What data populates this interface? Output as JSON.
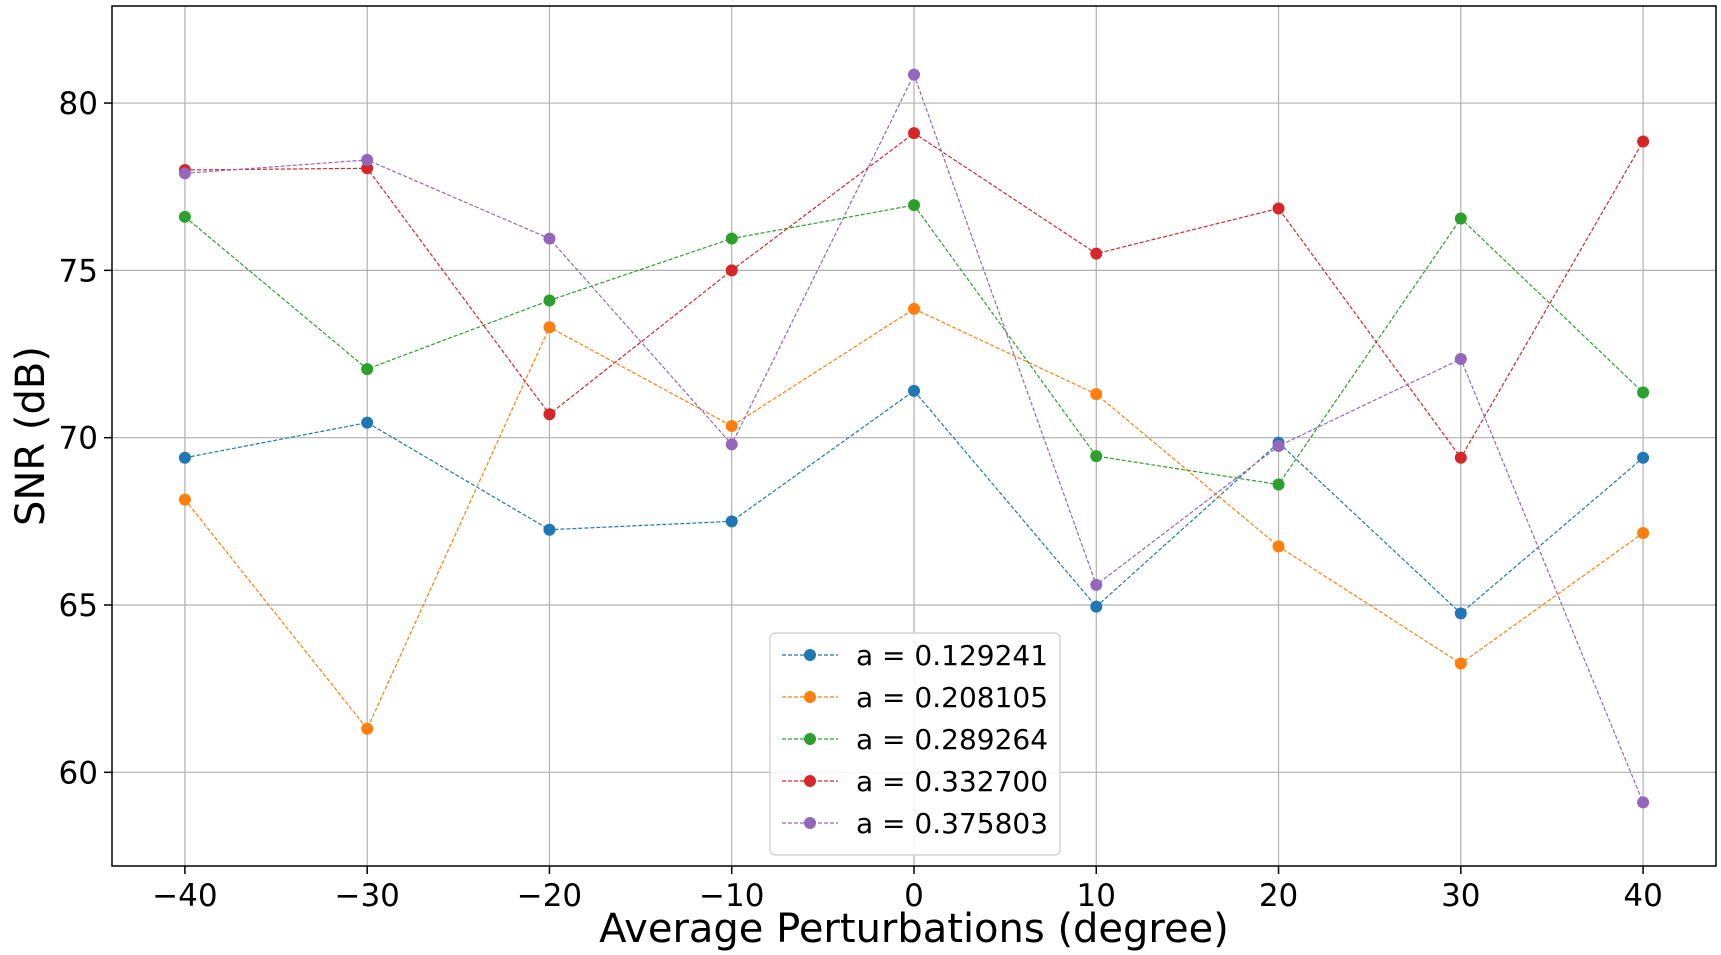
{
  "chart_data": {
    "type": "line",
    "title": "",
    "xlabel": "Average Perturbations (degree)",
    "ylabel": "SNR (dB)",
    "x": [
      -40,
      -30,
      -20,
      -10,
      0,
      10,
      20,
      30,
      40
    ],
    "xlim": [
      -44,
      44
    ],
    "ylim": [
      57.2,
      82.9
    ],
    "xticks": [
      -40,
      -30,
      -20,
      -10,
      0,
      10,
      20,
      30,
      40
    ],
    "xtick_labels": [
      "−40",
      "−30",
      "−20",
      "−10",
      "0",
      "10",
      "20",
      "30",
      "40"
    ],
    "yticks": [
      60,
      65,
      70,
      75,
      80
    ],
    "ytick_labels": [
      "60",
      "65",
      "70",
      "75",
      "80"
    ],
    "grid": true,
    "legend_position": "bottom-center",
    "series": [
      {
        "name": "a = 0.129241",
        "color": "#1f77b4",
        "values": [
          69.4,
          70.45,
          67.25,
          67.5,
          71.4,
          64.95,
          69.85,
          64.75,
          69.4
        ]
      },
      {
        "name": "a = 0.208105",
        "color": "#ff7f0e",
        "values": [
          68.15,
          61.3,
          73.3,
          70.35,
          73.85,
          71.3,
          66.75,
          63.25,
          67.15
        ]
      },
      {
        "name": "a = 0.289264",
        "color": "#2ca02c",
        "values": [
          76.6,
          72.05,
          74.1,
          75.95,
          76.95,
          69.45,
          68.6,
          76.55,
          71.35
        ]
      },
      {
        "name": "a = 0.332700",
        "color": "#d62728",
        "values": [
          78.0,
          78.05,
          70.7,
          75.0,
          79.1,
          75.5,
          76.85,
          69.4,
          78.85
        ]
      },
      {
        "name": "a = 0.375803",
        "color": "#9467bd",
        "values": [
          77.9,
          78.3,
          75.95,
          69.8,
          80.85,
          65.6,
          69.75,
          72.35,
          59.1
        ]
      }
    ]
  }
}
